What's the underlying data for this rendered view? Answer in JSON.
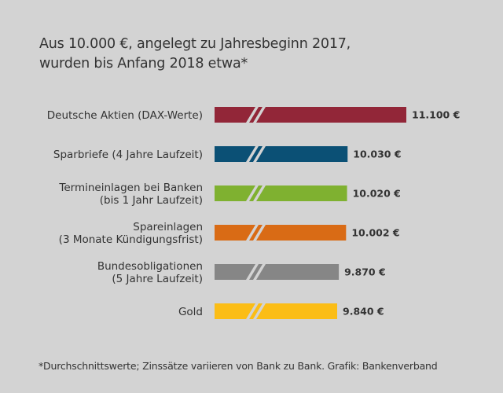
{
  "header": {
    "title_line1": "Aus 10.000 €, angelegt zu Jahresbeginn 2017,",
    "title_line2": "wurden bis Anfang 2018 etwa*"
  },
  "footnote": "*Durchschnittswerte; Zinssätze variieren von Bank zu Bank. Grafik: Bankenverband",
  "chart_data": {
    "type": "bar",
    "orientation": "horizontal",
    "title": "Aus 10.000 €, angelegt zu Jahresbeginn 2017, wurden bis Anfang 2018 etwa*",
    "xlabel": "",
    "ylabel": "",
    "axis_break": true,
    "grid": false,
    "unit": "€",
    "categories": [
      [
        "Deutsche Aktien (DAX-Werte)"
      ],
      [
        "Sparbriefe (4 Jahre Laufzeit)"
      ],
      [
        "Termineinlagen bei Banken",
        "(bis 1 Jahr Laufzeit)"
      ],
      [
        "Spareinlagen",
        "(3 Monate Kündigungsfrist)"
      ],
      [
        "Bundesobligationen",
        "(5 Jahre Laufzeit)"
      ],
      [
        "Gold"
      ]
    ],
    "values": [
      11100,
      10030,
      10020,
      10002,
      9870,
      9840
    ],
    "value_labels": [
      "11.100 €",
      "10.030 €",
      "10.020 €",
      "10.002 €",
      "9.870 €",
      "9.840 €"
    ],
    "colors": [
      "#922638",
      "#0b5075",
      "#7fb130",
      "#d96b15",
      "#868686",
      "#fbbd16"
    ],
    "break_color": "#d3d3d3"
  }
}
